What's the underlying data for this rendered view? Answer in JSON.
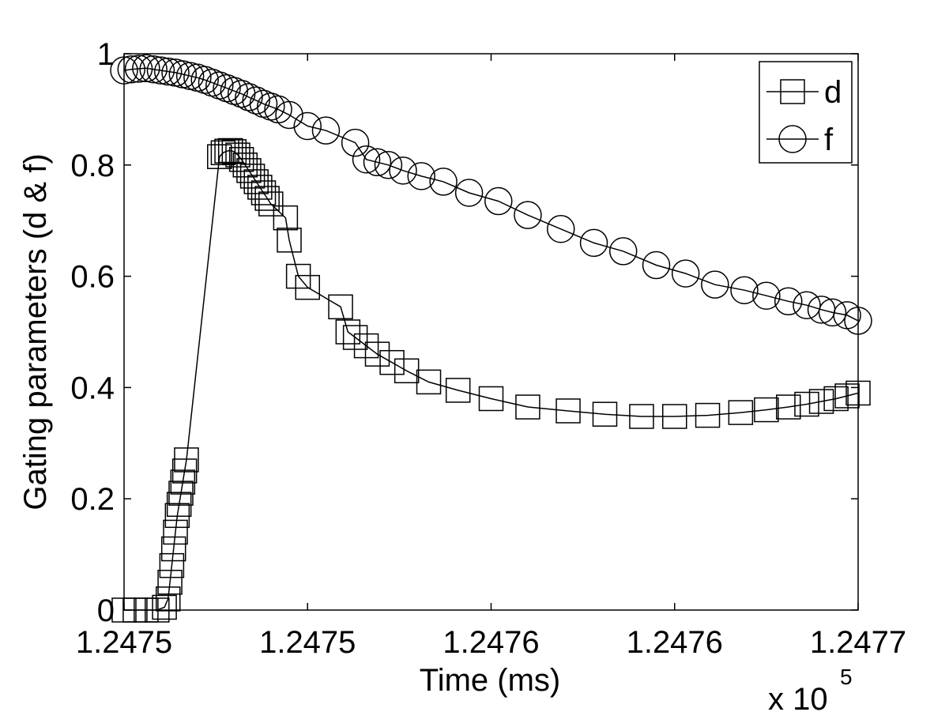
{
  "chart_data": {
    "type": "line",
    "title": "",
    "xlabel": "Time (ms)",
    "ylabel": "Gating parameters (d & f)",
    "x_exponent_label": "x 10",
    "x_exponent_power": "5",
    "xlim": [
      124750,
      124770
    ],
    "ylim": [
      0,
      1
    ],
    "x_tick_values": [
      124750,
      124755,
      124760,
      124765,
      124770
    ],
    "x_tick_labels": [
      "1.2475",
      "1.2475",
      "1.2476",
      "1.2476",
      "1.2477"
    ],
    "y_tick_values": [
      0,
      0.2,
      0.4,
      0.6,
      0.8,
      1
    ],
    "y_tick_labels": [
      "0",
      "0.2",
      "0.4",
      "0.6",
      "0.8",
      "1"
    ],
    "grid": false,
    "legend_position": "top-right",
    "series": [
      {
        "name": "d",
        "marker": "square",
        "color": "#000000",
        "x": [
          124750.0,
          124750.3,
          124750.6,
          124750.9,
          124751.1,
          124751.2,
          124751.25,
          124751.3,
          124751.35,
          124751.4,
          124751.45,
          124751.5,
          124751.55,
          124751.6,
          124751.65,
          124751.7,
          124752.6,
          124752.7,
          124752.8,
          124752.9,
          124753.0,
          124753.1,
          124753.2,
          124753.3,
          124753.4,
          124753.5,
          124753.6,
          124753.7,
          124753.8,
          124753.9,
          124754.0,
          124754.4,
          124754.5,
          124754.75,
          124755.0,
          124755.9,
          124756.1,
          124756.3,
          124756.6,
          124756.9,
          124757.3,
          124757.7,
          124758.3,
          124759.1,
          124760.0,
          124761.0,
          124762.1,
          124763.1,
          124764.1,
          124765.0,
          124765.9,
          124766.8,
          124767.5,
          124768.1,
          124768.6,
          124769.0,
          124769.4,
          124769.7,
          124770.0
        ],
        "y": [
          0.0,
          0.0,
          0.0,
          0.0,
          0.005,
          0.02,
          0.05,
          0.08,
          0.11,
          0.14,
          0.17,
          0.19,
          0.21,
          0.23,
          0.25,
          0.27,
          0.815,
          0.822,
          0.825,
          0.826,
          0.824,
          0.818,
          0.81,
          0.8,
          0.79,
          0.78,
          0.77,
          0.76,
          0.75,
          0.74,
          0.73,
          0.705,
          0.665,
          0.6,
          0.58,
          0.545,
          0.5,
          0.49,
          0.475,
          0.46,
          0.445,
          0.43,
          0.41,
          0.395,
          0.38,
          0.365,
          0.358,
          0.352,
          0.348,
          0.348,
          0.35,
          0.355,
          0.36,
          0.365,
          0.37,
          0.375,
          0.38,
          0.385,
          0.39
        ]
      },
      {
        "name": "f",
        "marker": "circle",
        "color": "#000000",
        "x": [
          124750.0,
          124750.2,
          124750.4,
          124750.6,
          124750.8,
          124751.0,
          124751.2,
          124751.4,
          124751.6,
          124751.8,
          124752.0,
          124752.2,
          124752.4,
          124752.6,
          124752.8,
          124753.0,
          124753.2,
          124753.4,
          124753.6,
          124753.8,
          124754.0,
          124754.2,
          124754.5,
          124755.0,
          124755.5,
          124756.3,
          124756.6,
          124756.9,
          124757.2,
          124757.6,
          124758.1,
          124758.7,
          124759.4,
          124760.2,
          124761.0,
          124761.9,
          124762.8,
          124763.6,
          124764.5,
          124765.3,
          124766.1,
          124766.9,
          124767.5,
          124768.1,
          124768.6,
          124769.0,
          124769.3,
          124769.7,
          124770.0
        ],
        "y": [
          0.97,
          0.972,
          0.973,
          0.974,
          0.972,
          0.97,
          0.968,
          0.966,
          0.963,
          0.96,
          0.957,
          0.953,
          0.948,
          0.943,
          0.938,
          0.933,
          0.928,
          0.922,
          0.916,
          0.91,
          0.905,
          0.9,
          0.89,
          0.87,
          0.862,
          0.84,
          0.81,
          0.805,
          0.8,
          0.79,
          0.78,
          0.77,
          0.75,
          0.735,
          0.71,
          0.685,
          0.66,
          0.645,
          0.62,
          0.605,
          0.585,
          0.575,
          0.565,
          0.555,
          0.548,
          0.54,
          0.535,
          0.53,
          0.52
        ]
      }
    ]
  }
}
